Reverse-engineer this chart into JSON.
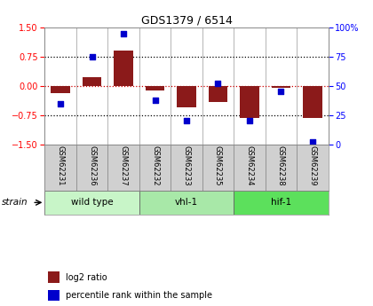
{
  "title": "GDS1379 / 6514",
  "samples": [
    "GSM62231",
    "GSM62236",
    "GSM62237",
    "GSM62232",
    "GSM62233",
    "GSM62235",
    "GSM62234",
    "GSM62238",
    "GSM62239"
  ],
  "log2_ratio": [
    -0.18,
    0.22,
    0.9,
    -0.12,
    -0.55,
    -0.42,
    -0.82,
    -0.05,
    -0.82
  ],
  "percentile": [
    35,
    75,
    95,
    38,
    20,
    52,
    20,
    45,
    2
  ],
  "groups": [
    {
      "label": "wild type",
      "start": 0,
      "end": 3,
      "color": "#c8f5c8"
    },
    {
      "label": "vhl-1",
      "start": 3,
      "end": 6,
      "color": "#a8e8a8"
    },
    {
      "label": "hif-1",
      "start": 6,
      "end": 9,
      "color": "#5ce05c"
    }
  ],
  "ylim_left": [
    -1.5,
    1.5
  ],
  "ylim_right": [
    0,
    100
  ],
  "yticks_left": [
    -1.5,
    -0.75,
    0,
    0.75,
    1.5
  ],
  "yticks_right": [
    0,
    25,
    50,
    75,
    100
  ],
  "bar_color": "#8B1A1A",
  "dot_color": "#0000CC",
  "zero_line_color": "#cc0000",
  "bg_color": "#ffffff",
  "plot_bg": "#ffffff",
  "label_bg": "#d0d0d0",
  "strain_label": "strain",
  "legend_bar": "log2 ratio",
  "legend_dot": "percentile rank within the sample"
}
